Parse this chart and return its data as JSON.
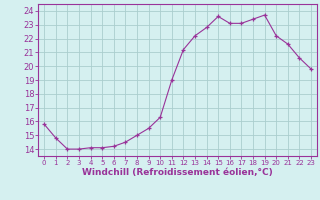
{
  "x": [
    0,
    1,
    2,
    3,
    4,
    5,
    6,
    7,
    8,
    9,
    10,
    11,
    12,
    13,
    14,
    15,
    16,
    17,
    18,
    19,
    20,
    21,
    22,
    23
  ],
  "y": [
    15.8,
    14.8,
    14.0,
    14.0,
    14.1,
    14.1,
    14.2,
    14.5,
    15.0,
    15.5,
    16.3,
    19.0,
    21.2,
    22.2,
    22.8,
    23.6,
    23.1,
    23.1,
    23.4,
    23.7,
    22.2,
    21.6,
    20.6,
    19.8
  ],
  "line_color": "#993399",
  "marker": "+",
  "bg_color": "#d5f0f0",
  "grid_color": "#aacece",
  "xlabel": "Windchill (Refroidissement éolien,°C)",
  "xlabel_color": "#993399",
  "ylabel_ticks": [
    14,
    15,
    16,
    17,
    18,
    19,
    20,
    21,
    22,
    23,
    24
  ],
  "xtick_labels": [
    "0",
    "1",
    "2",
    "3",
    "4",
    "5",
    "6",
    "7",
    "8",
    "9",
    "10",
    "11",
    "12",
    "13",
    "14",
    "15",
    "16",
    "17",
    "18",
    "19",
    "20",
    "21",
    "22",
    "23"
  ],
  "ylim": [
    13.5,
    24.5
  ],
  "xlim": [
    -0.5,
    23.5
  ],
  "tick_color": "#993399",
  "axis_color": "#993399",
  "xlabel_fontsize": 6.5,
  "ytick_fontsize": 6,
  "xtick_fontsize": 5
}
